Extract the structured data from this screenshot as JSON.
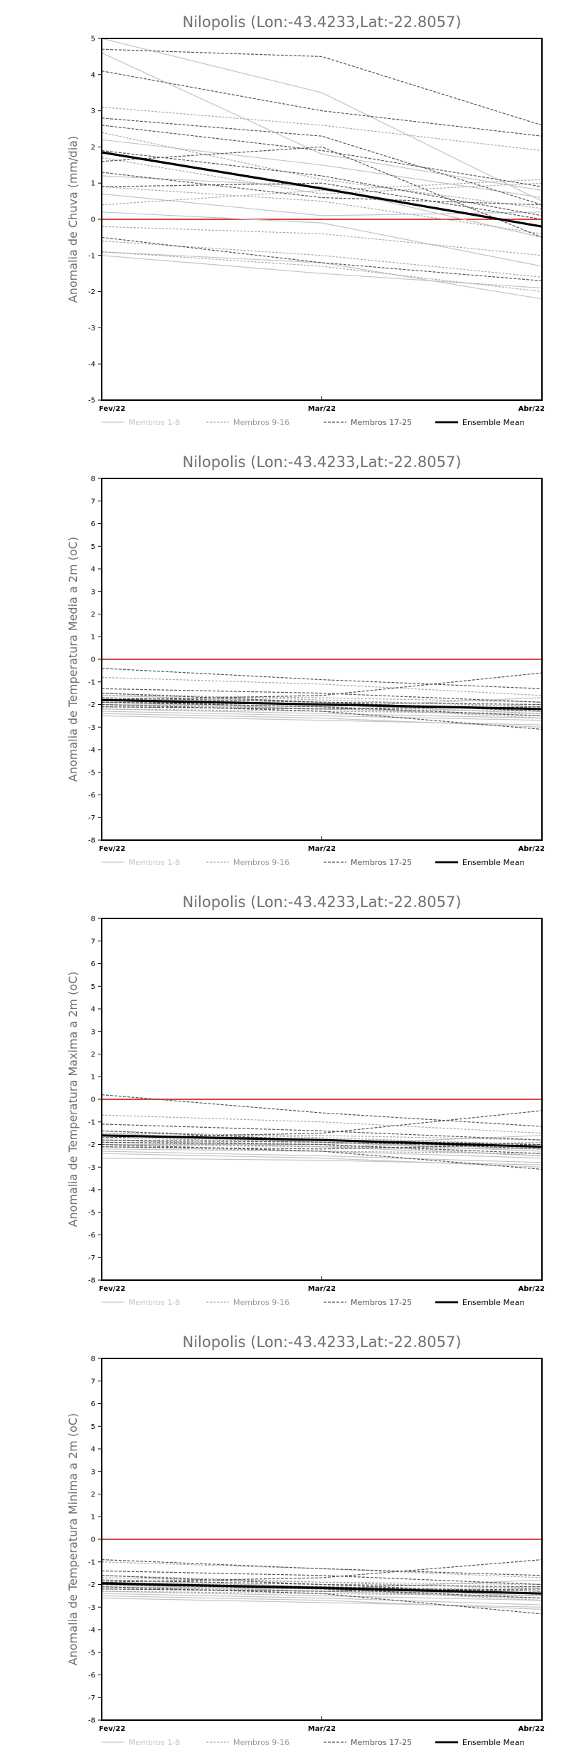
{
  "chart_data": [
    {
      "type": "line",
      "title": "Nilopolis (Lon:-43.4233,Lat:-22.8057)",
      "ylabel": "Anomalia de Chuva (mm/dia)",
      "categories": [
        "Fev/22",
        "Mar/22",
        "Abr/22"
      ],
      "ylim": [
        -5,
        5
      ],
      "yticks": [
        5,
        4,
        3,
        2,
        1,
        0,
        -1,
        -2,
        -3,
        -4,
        -5
      ],
      "zero_line_color": "#e04040",
      "legend": [
        "Membros 1-8",
        "Membros 9-16",
        "Membros 17-25",
        "Ensemble Mean"
      ],
      "series": [
        {
          "group": 1,
          "values": [
            5.0,
            3.5,
            0.5
          ]
        },
        {
          "group": 1,
          "values": [
            4.6,
            1.8,
            0.8
          ]
        },
        {
          "group": 1,
          "values": [
            2.2,
            1.5,
            0.6
          ]
        },
        {
          "group": 1,
          "values": [
            1.2,
            0.9,
            -0.5
          ]
        },
        {
          "group": 1,
          "values": [
            0.7,
            0.1,
            0.2
          ]
        },
        {
          "group": 1,
          "values": [
            0.2,
            -0.1,
            -1.3
          ]
        },
        {
          "group": 1,
          "values": [
            -0.9,
            -1.2,
            -2.2
          ]
        },
        {
          "group": 1,
          "values": [
            -1.0,
            -1.5,
            -1.9
          ]
        },
        {
          "group": 2,
          "values": [
            3.1,
            2.6,
            1.9
          ]
        },
        {
          "group": 2,
          "values": [
            2.4,
            1.1,
            0.3
          ]
        },
        {
          "group": 2,
          "values": [
            1.7,
            0.7,
            1.0
          ]
        },
        {
          "group": 2,
          "values": [
            0.9,
            0.5,
            -0.4
          ]
        },
        {
          "group": 2,
          "values": [
            0.4,
            0.8,
            1.1
          ]
        },
        {
          "group": 2,
          "values": [
            -0.2,
            -0.4,
            -1.0
          ]
        },
        {
          "group": 2,
          "values": [
            -0.6,
            -1.0,
            -1.6
          ]
        },
        {
          "group": 2,
          "values": [
            -0.9,
            -1.3,
            -2.0
          ]
        },
        {
          "group": 3,
          "values": [
            4.7,
            4.5,
            2.6
          ]
        },
        {
          "group": 3,
          "values": [
            4.1,
            3.0,
            2.3
          ]
        },
        {
          "group": 3,
          "values": [
            2.8,
            2.3,
            0.4
          ]
        },
        {
          "group": 3,
          "values": [
            2.6,
            1.9,
            0.9
          ]
        },
        {
          "group": 3,
          "values": [
            1.9,
            1.2,
            0.1
          ]
        },
        {
          "group": 3,
          "values": [
            1.6,
            2.0,
            -0.5
          ]
        },
        {
          "group": 3,
          "values": [
            1.3,
            0.6,
            0.4
          ]
        },
        {
          "group": 3,
          "values": [
            0.9,
            1.0,
            0.0
          ]
        },
        {
          "group": 3,
          "values": [
            -0.5,
            -1.2,
            -1.7
          ]
        },
        {
          "group": 0,
          "values": [
            1.85,
            0.85,
            -0.2
          ]
        }
      ]
    },
    {
      "type": "line",
      "title": "Nilopolis (Lon:-43.4233,Lat:-22.8057)",
      "ylabel": "Anomalia de Temperatura Media a 2m (oC)",
      "categories": [
        "Fev/22",
        "Mar/22",
        "Abr/22"
      ],
      "ylim": [
        -8,
        8
      ],
      "yticks": [
        8,
        7,
        6,
        5,
        4,
        3,
        2,
        1,
        0,
        -1,
        -2,
        -3,
        -4,
        -5,
        -6,
        -7,
        -8
      ],
      "zero_line_color": "#e04040",
      "legend": [
        "Membros 1-8",
        "Membros 9-16",
        "Membros 17-25",
        "Ensemble Mean"
      ],
      "series": [
        {
          "group": 1,
          "values": [
            -1.6,
            -1.9,
            -2.3
          ]
        },
        {
          "group": 1,
          "values": [
            -2.3,
            -2.5,
            -2.7
          ]
        },
        {
          "group": 1,
          "values": [
            -2.5,
            -2.7,
            -2.9
          ]
        },
        {
          "group": 1,
          "values": [
            -1.9,
            -2.2,
            -2.5
          ]
        },
        {
          "group": 1,
          "values": [
            -2.0,
            -2.1,
            -1.7
          ]
        },
        {
          "group": 1,
          "values": [
            -2.2,
            -2.4,
            -2.6
          ]
        },
        {
          "group": 1,
          "values": [
            -1.7,
            -2.0,
            -2.4
          ]
        },
        {
          "group": 1,
          "values": [
            -2.4,
            -2.6,
            -3.0
          ]
        },
        {
          "group": 2,
          "values": [
            -0.8,
            -1.1,
            -1.6
          ]
        },
        {
          "group": 2,
          "values": [
            -1.8,
            -2.0,
            -2.2
          ]
        },
        {
          "group": 2,
          "values": [
            -2.1,
            -2.2,
            -2.0
          ]
        },
        {
          "group": 2,
          "values": [
            -1.5,
            -1.8,
            -2.1
          ]
        },
        {
          "group": 2,
          "values": [
            -2.2,
            -2.3,
            -2.4
          ]
        },
        {
          "group": 2,
          "values": [
            -1.9,
            -2.1,
            -2.6
          ]
        },
        {
          "group": 2,
          "values": [
            -2.0,
            -2.2,
            -2.3
          ]
        },
        {
          "group": 2,
          "values": [
            -1.6,
            -1.7,
            -1.9
          ]
        },
        {
          "group": 3,
          "values": [
            -0.4,
            -0.9,
            -1.3
          ]
        },
        {
          "group": 3,
          "values": [
            -1.3,
            -1.5,
            -1.9
          ]
        },
        {
          "group": 3,
          "values": [
            -1.7,
            -1.9,
            -2.3
          ]
        },
        {
          "group": 3,
          "values": [
            -1.9,
            -2.1,
            -2.5
          ]
        },
        {
          "group": 3,
          "values": [
            -2.0,
            -2.3,
            -3.1
          ]
        },
        {
          "group": 3,
          "values": [
            -1.8,
            -1.6,
            -0.6
          ]
        },
        {
          "group": 3,
          "values": [
            -2.1,
            -2.2,
            -2.1
          ]
        },
        {
          "group": 3,
          "values": [
            -1.5,
            -1.9,
            -2.0
          ]
        },
        {
          "group": 3,
          "values": [
            -1.9,
            -2.0,
            -2.2
          ]
        },
        {
          "group": 0,
          "values": [
            -1.8,
            -2.0,
            -2.2
          ]
        }
      ]
    },
    {
      "type": "line",
      "title": "Nilopolis (Lon:-43.4233,Lat:-22.8057)",
      "ylabel": "Anomalia de Temperatura Maxima a 2m (oC)",
      "categories": [
        "Fev/22",
        "Mar/22",
        "Abr/22"
      ],
      "ylim": [
        -8,
        8
      ],
      "yticks": [
        8,
        7,
        6,
        5,
        4,
        3,
        2,
        1,
        0,
        -1,
        -2,
        -3,
        -4,
        -5,
        -6,
        -7,
        -8
      ],
      "zero_line_color": "#e04040",
      "legend": [
        "Membros 1-8",
        "Membros 9-16",
        "Membros 17-25",
        "Ensemble Mean"
      ],
      "series": [
        {
          "group": 1,
          "values": [
            -1.5,
            -1.9,
            -2.2
          ]
        },
        {
          "group": 1,
          "values": [
            -2.3,
            -2.5,
            -2.8
          ]
        },
        {
          "group": 1,
          "values": [
            -2.6,
            -2.7,
            -2.9
          ]
        },
        {
          "group": 1,
          "values": [
            -1.8,
            -2.1,
            -2.5
          ]
        },
        {
          "group": 1,
          "values": [
            -2.0,
            -2.0,
            -1.6
          ]
        },
        {
          "group": 1,
          "values": [
            -2.2,
            -2.3,
            -2.6
          ]
        },
        {
          "group": 1,
          "values": [
            -1.6,
            -1.9,
            -2.3
          ]
        },
        {
          "group": 1,
          "values": [
            -2.4,
            -2.6,
            -3.0
          ]
        },
        {
          "group": 2,
          "values": [
            -0.7,
            -1.0,
            -1.5
          ]
        },
        {
          "group": 2,
          "values": [
            -1.7,
            -1.9,
            -2.1
          ]
        },
        {
          "group": 2,
          "values": [
            -2.0,
            -2.1,
            -1.9
          ]
        },
        {
          "group": 2,
          "values": [
            -1.4,
            -1.7,
            -2.0
          ]
        },
        {
          "group": 2,
          "values": [
            -2.1,
            -2.3,
            -2.4
          ]
        },
        {
          "group": 2,
          "values": [
            -1.8,
            -2.0,
            -2.5
          ]
        },
        {
          "group": 2,
          "values": [
            -1.9,
            -2.1,
            -2.2
          ]
        },
        {
          "group": 2,
          "values": [
            -1.5,
            -1.6,
            -1.8
          ]
        },
        {
          "group": 3,
          "values": [
            0.2,
            -0.6,
            -1.2
          ]
        },
        {
          "group": 3,
          "values": [
            -1.1,
            -1.4,
            -1.8
          ]
        },
        {
          "group": 3,
          "values": [
            -1.6,
            -1.8,
            -2.2
          ]
        },
        {
          "group": 3,
          "values": [
            -1.9,
            -2.0,
            -2.4
          ]
        },
        {
          "group": 3,
          "values": [
            -2.0,
            -2.3,
            -3.1
          ]
        },
        {
          "group": 3,
          "values": [
            -1.7,
            -1.5,
            -0.5
          ]
        },
        {
          "group": 3,
          "values": [
            -2.1,
            -2.2,
            -2.0
          ]
        },
        {
          "group": 3,
          "values": [
            -1.4,
            -1.8,
            -2.0
          ]
        },
        {
          "group": 3,
          "values": [
            -1.8,
            -1.9,
            -2.1
          ]
        },
        {
          "group": 0,
          "values": [
            -1.6,
            -1.8,
            -2.1
          ]
        }
      ]
    },
    {
      "type": "line",
      "title": "Nilopolis (Lon:-43.4233,Lat:-22.8057)",
      "ylabel": "Anomalia de Temperatura Minima a 2m (oC)",
      "categories": [
        "Fev/22",
        "Mar/22",
        "Abr/22"
      ],
      "ylim": [
        -8,
        8
      ],
      "yticks": [
        8,
        7,
        6,
        5,
        4,
        3,
        2,
        1,
        0,
        -1,
        -2,
        -3,
        -4,
        -5,
        -6,
        -7,
        -8
      ],
      "zero_line_color": "#e04040",
      "legend": [
        "Membros 1-8",
        "Membros 9-16",
        "Membros 17-25",
        "Ensemble Mean"
      ],
      "series": [
        {
          "group": 1,
          "values": [
            -1.9,
            -2.2,
            -2.5
          ]
        },
        {
          "group": 1,
          "values": [
            -2.4,
            -2.6,
            -2.9
          ]
        },
        {
          "group": 1,
          "values": [
            -2.6,
            -2.8,
            -3.0
          ]
        },
        {
          "group": 1,
          "values": [
            -2.0,
            -2.3,
            -2.6
          ]
        },
        {
          "group": 1,
          "values": [
            -2.1,
            -2.2,
            -1.8
          ]
        },
        {
          "group": 1,
          "values": [
            -2.3,
            -2.5,
            -2.7
          ]
        },
        {
          "group": 1,
          "values": [
            -1.8,
            -2.1,
            -2.4
          ]
        },
        {
          "group": 1,
          "values": [
            -2.5,
            -2.7,
            -3.1
          ]
        },
        {
          "group": 2,
          "values": [
            -1.0,
            -1.3,
            -1.7
          ]
        },
        {
          "group": 2,
          "values": [
            -1.9,
            -2.1,
            -2.3
          ]
        },
        {
          "group": 2,
          "values": [
            -2.2,
            -2.3,
            -2.1
          ]
        },
        {
          "group": 2,
          "values": [
            -1.6,
            -1.9,
            -2.2
          ]
        },
        {
          "group": 2,
          "values": [
            -2.3,
            -2.4,
            -2.5
          ]
        },
        {
          "group": 2,
          "values": [
            -2.0,
            -2.2,
            -2.7
          ]
        },
        {
          "group": 2,
          "values": [
            -2.1,
            -2.3,
            -2.4
          ]
        },
        {
          "group": 2,
          "values": [
            -1.7,
            -1.9,
            -2.0
          ]
        },
        {
          "group": 3,
          "values": [
            -0.9,
            -1.3,
            -1.6
          ]
        },
        {
          "group": 3,
          "values": [
            -1.4,
            -1.6,
            -2.0
          ]
        },
        {
          "group": 3,
          "values": [
            -1.8,
            -2.0,
            -2.4
          ]
        },
        {
          "group": 3,
          "values": [
            -2.0,
            -2.2,
            -2.6
          ]
        },
        {
          "group": 3,
          "values": [
            -2.1,
            -2.4,
            -3.3
          ]
        },
        {
          "group": 3,
          "values": [
            -1.9,
            -1.7,
            -0.9
          ]
        },
        {
          "group": 3,
          "values": [
            -2.2,
            -2.3,
            -2.2
          ]
        },
        {
          "group": 3,
          "values": [
            -1.6,
            -2.0,
            -2.1
          ]
        },
        {
          "group": 3,
          "values": [
            -2.0,
            -2.1,
            -2.3
          ]
        },
        {
          "group": 0,
          "values": [
            -1.95,
            -2.15,
            -2.4
          ]
        }
      ]
    }
  ]
}
